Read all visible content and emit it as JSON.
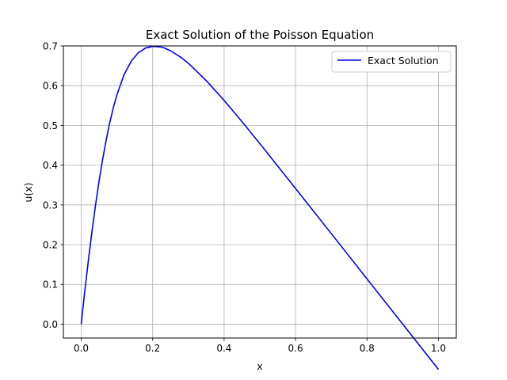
{
  "chart_data": {
    "type": "line",
    "title": "Exact Solution of the Poisson Equation",
    "xlabel": "x",
    "ylabel": "u(x)",
    "xlim": [
      -0.05,
      1.05
    ],
    "ylim": [
      -0.035,
      0.7
    ],
    "xticks": [
      "0.0",
      "0.2",
      "0.4",
      "0.6",
      "0.8",
      "1.0"
    ],
    "yticks": [
      "0.0",
      "0.1",
      "0.2",
      "0.3",
      "0.4",
      "0.5",
      "0.6",
      "0.7"
    ],
    "grid": true,
    "legend_position": "top-right",
    "series": [
      {
        "name": "Exact Solution",
        "color": "#0000ff",
        "x": [
          0,
          0.005,
          0.01,
          0.02,
          0.03,
          0.04,
          0.05,
          0.06,
          0.07,
          0.08,
          0.09,
          0.1,
          0.12,
          0.14,
          0.16,
          0.18,
          0.2,
          0.22,
          0.23,
          0.25,
          0.28,
          0.3,
          0.35,
          0.4,
          0.45,
          0.5,
          0.6,
          0.7,
          0.8,
          0.9,
          1.0
        ],
        "y": [
          0,
          0.0419,
          0.0827,
          0.1602,
          0.2325,
          0.2992,
          0.3601,
          0.415,
          0.464,
          0.5073,
          0.545,
          0.5773,
          0.6277,
          0.6617,
          0.683,
          0.6946,
          0.6989,
          0.6977,
          0.6958,
          0.6878,
          0.6708,
          0.6563,
          0.6127,
          0.5629,
          0.5095,
          0.4542,
          0.3413,
          0.2278,
          0.114,
          0.0,
          -0.114
        ]
      }
    ]
  }
}
